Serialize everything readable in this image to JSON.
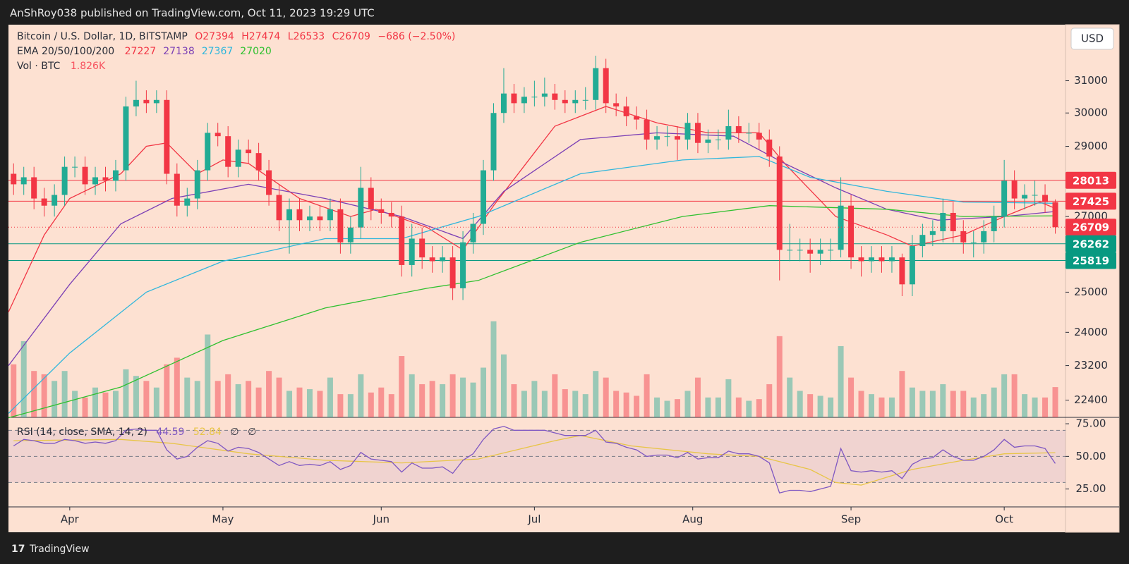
{
  "header": {
    "text": "AnShRoy038 published on TradingView.com, Oct 11, 2023 19:29 UTC"
  },
  "footer": {
    "logo": "TradingView"
  },
  "chart_data": {
    "type": "candlestick",
    "legend": {
      "symbol": "Bitcoin / U.S. Dollar, 1D, BITSTAMP",
      "open": "O27394",
      "high": "H27474",
      "low": "L26533",
      "close": "C26709",
      "change": "−686 (−2.50%)",
      "ema_label": "EMA 20/50/100/200",
      "vol_label": "Vol · BTC",
      "vol_value": "1.826K"
    },
    "currency": "USD",
    "log_scale": true,
    "up_color": "#22ab94",
    "down_color": "#f23645",
    "xlim": [
      -12,
      195
    ],
    "xticks": [
      {
        "value": 0,
        "label": "Apr"
      },
      {
        "value": 30,
        "label": "May"
      },
      {
        "value": 61,
        "label": "Jun"
      },
      {
        "value": 91,
        "label": "Jul"
      },
      {
        "value": 122,
        "label": "Aug"
      },
      {
        "value": 153,
        "label": "Sep"
      },
      {
        "value": 183,
        "label": "Oct"
      }
    ],
    "ylim": [
      22010,
      32820
    ],
    "yticks": [
      22400,
      23200,
      24000,
      25000,
      27000,
      29000,
      30000,
      31000
    ],
    "x": [
      -11,
      -9,
      -7,
      -5,
      -3,
      -1,
      1,
      3,
      5,
      7,
      9,
      11,
      13,
      15,
      17,
      19,
      21,
      23,
      25,
      27,
      29,
      31,
      33,
      35,
      37,
      39,
      41,
      43,
      45,
      47,
      49,
      51,
      53,
      55,
      57,
      59,
      61,
      63,
      65,
      67,
      69,
      71,
      73,
      75,
      77,
      79,
      81,
      83,
      85,
      87,
      89,
      91,
      93,
      95,
      97,
      99,
      101,
      103,
      105,
      107,
      109,
      111,
      113,
      115,
      117,
      119,
      121,
      123,
      125,
      127,
      129,
      131,
      133,
      135,
      137,
      139,
      141,
      143,
      145,
      147,
      149,
      151,
      153,
      155,
      157,
      159,
      161,
      163,
      165,
      167,
      169,
      171,
      173,
      175,
      177,
      179,
      181,
      183,
      185,
      187,
      189,
      191,
      193
    ],
    "open": [
      28200,
      27900,
      28100,
      27500,
      27300,
      27600,
      28400,
      28400,
      27900,
      28100,
      28000,
      28300,
      30200,
      30400,
      30300,
      30400,
      28200,
      27300,
      27500,
      28300,
      29400,
      29300,
      28400,
      28900,
      28800,
      28300,
      27600,
      26900,
      27200,
      26900,
      27000,
      26900,
      27200,
      26300,
      26700,
      27800,
      27200,
      27100,
      27000,
      25700,
      26400,
      25900,
      25800,
      25900,
      25100,
      26300,
      26800,
      28300,
      30000,
      30600,
      30300,
      30500,
      30500,
      30600,
      30400,
      30300,
      30400,
      30400,
      31400,
      30300,
      30200,
      29900,
      29800,
      29200,
      29300,
      29300,
      29200,
      29700,
      29100,
      29200,
      29200,
      29600,
      29400,
      29400,
      29200,
      28700,
      26100,
      26100,
      26100,
      26000,
      26100,
      26100,
      27300,
      25900,
      25800,
      25900,
      25800,
      25900,
      25200,
      26200,
      26500,
      26600,
      27100,
      26600,
      26300,
      26300,
      26600,
      27000,
      28000,
      27500,
      27600,
      27600,
      27394
    ],
    "high": [
      28500,
      28400,
      28400,
      27800,
      27900,
      28700,
      28700,
      28700,
      28400,
      28400,
      28600,
      30500,
      31000,
      30700,
      30700,
      30700,
      28500,
      27800,
      28600,
      29700,
      29700,
      29600,
      29200,
      29200,
      29100,
      28600,
      27900,
      27500,
      27500,
      27300,
      27300,
      27500,
      27500,
      27000,
      28400,
      28100,
      27500,
      27400,
      27300,
      26800,
      26700,
      26200,
      26200,
      26200,
      26600,
      27100,
      28600,
      30300,
      31400,
      30900,
      30800,
      31000,
      31100,
      30900,
      30700,
      30700,
      30800,
      31800,
      31700,
      30600,
      30500,
      30200,
      30100,
      29600,
      29600,
      29600,
      30000,
      30000,
      29500,
      29500,
      30100,
      29900,
      29700,
      29700,
      29500,
      29000,
      26800,
      26400,
      26400,
      26400,
      26400,
      28100,
      27600,
      26200,
      26200,
      26200,
      26200,
      26000,
      26500,
      26800,
      26900,
      27500,
      27400,
      26900,
      26600,
      26900,
      27300,
      28600,
      28300,
      27900,
      28000,
      27900,
      27474
    ],
    "low": [
      27600,
      27600,
      27200,
      27000,
      27000,
      27300,
      28100,
      27600,
      27600,
      27700,
      27700,
      28000,
      29900,
      30000,
      30000,
      27900,
      27000,
      27000,
      27200,
      28000,
      29000,
      28100,
      28100,
      28500,
      28000,
      27300,
      26600,
      26000,
      26600,
      26600,
      26600,
      26600,
      26000,
      26000,
      26400,
      26900,
      26800,
      26700,
      25400,
      25400,
      25600,
      25500,
      25500,
      24800,
      24800,
      26000,
      26500,
      28000,
      29700,
      30000,
      30000,
      30200,
      30200,
      30100,
      30000,
      30000,
      30100,
      30100,
      30000,
      29900,
      29600,
      29500,
      28900,
      28900,
      29000,
      28600,
      28900,
      28800,
      28800,
      28900,
      28900,
      29100,
      29100,
      28900,
      28400,
      25300,
      25800,
      25800,
      25500,
      25700,
      25800,
      25900,
      25600,
      25400,
      25500,
      25500,
      25500,
      24900,
      24900,
      25900,
      26200,
      26300,
      26300,
      26000,
      25900,
      26000,
      26300,
      26700,
      27200,
      27200,
      27300,
      27100,
      26533
    ],
    "close": [
      27900,
      28100,
      27500,
      27300,
      27600,
      28400,
      28400,
      27900,
      28100,
      28000,
      28300,
      30200,
      30400,
      30300,
      30400,
      28200,
      27300,
      27500,
      28300,
      29400,
      29300,
      28400,
      28900,
      28800,
      28300,
      27600,
      26900,
      27200,
      26900,
      27000,
      26900,
      27200,
      26300,
      26700,
      27800,
      27200,
      27100,
      27000,
      25700,
      26400,
      25900,
      25800,
      25900,
      25100,
      26300,
      26800,
      28300,
      30000,
      30600,
      30300,
      30500,
      30500,
      30600,
      30400,
      30300,
      30400,
      30400,
      31400,
      30300,
      30200,
      29900,
      29800,
      29200,
      29300,
      29300,
      29200,
      29700,
      29100,
      29200,
      29200,
      29600,
      29400,
      29400,
      29200,
      28700,
      26100,
      26100,
      26100,
      26000,
      26100,
      26100,
      27300,
      25900,
      25800,
      25900,
      25800,
      25900,
      25200,
      26200,
      26500,
      26600,
      27100,
      26600,
      26300,
      26300,
      26600,
      27000,
      28000,
      27500,
      27600,
      27600,
      27400,
      26709
    ],
    "levels": [
      {
        "value": 28013,
        "color": "#f23645"
      },
      {
        "value": 27425,
        "color": "#f23645"
      },
      {
        "value": 26262,
        "color": "#089981"
      },
      {
        "value": 25819,
        "color": "#089981"
      }
    ],
    "ema": [
      {
        "name": "20",
        "color": "#f23645",
        "x": [
          -12,
          -5,
          0,
          10,
          15,
          19,
          25,
          30,
          35,
          45,
          55,
          60,
          70,
          77,
          83,
          95,
          105,
          115,
          125,
          135,
          140,
          150,
          160,
          165,
          175,
          183,
          190,
          193
        ],
        "values": [
          24500,
          26500,
          27500,
          28200,
          29000,
          29100,
          28200,
          28600,
          28500,
          27500,
          27000,
          27200,
          26700,
          26100,
          27300,
          29600,
          30200,
          29700,
          29400,
          29400,
          28500,
          27000,
          26500,
          26200,
          26500,
          27000,
          27400,
          27227
        ]
      },
      {
        "name": "50",
        "color": "#7b3fb5",
        "x": [
          -12,
          0,
          10,
          20,
          35,
          50,
          65,
          77,
          85,
          100,
          115,
          130,
          140,
          150,
          160,
          170,
          183,
          193
        ],
        "values": [
          23200,
          25200,
          26800,
          27500,
          27900,
          27500,
          27000,
          26400,
          27700,
          29200,
          29400,
          29300,
          28500,
          27800,
          27200,
          26900,
          27000,
          27138
        ]
      },
      {
        "name": "100",
        "color": "#2fb6dc",
        "x": [
          -12,
          0,
          15,
          30,
          50,
          65,
          80,
          100,
          120,
          135,
          145,
          160,
          175,
          193
        ],
        "values": [
          22100,
          23500,
          25000,
          25800,
          26400,
          26400,
          27000,
          28200,
          28600,
          28700,
          28100,
          27700,
          27400,
          27367
        ]
      },
      {
        "name": "200",
        "color": "#2fc02f",
        "x": [
          -12,
          10,
          30,
          50,
          70,
          80,
          100,
          120,
          137,
          160,
          175,
          193
        ],
        "values": [
          22000,
          22700,
          23800,
          24600,
          25100,
          25300,
          26300,
          27000,
          27300,
          27200,
          27000,
          27020
        ]
      }
    ],
    "volume": {
      "ylim": [
        0,
        23.7
      ],
      "values": [
        3.2,
        4.6,
        2.8,
        2.6,
        2.2,
        2.8,
        1.6,
        1.2,
        1.8,
        1.5,
        1.6,
        2.9,
        2.5,
        2.2,
        1.8,
        3.2,
        3.6,
        2.4,
        2.2,
        5.0,
        2.2,
        2.6,
        2.0,
        2.2,
        1.8,
        2.8,
        2.4,
        1.6,
        1.8,
        1.7,
        1.6,
        2.4,
        1.4,
        1.4,
        2.6,
        1.5,
        1.8,
        1.4,
        3.7,
        2.6,
        2.0,
        2.2,
        2.0,
        2.6,
        2.4,
        2.1,
        3.0,
        5.8,
        3.8,
        2.0,
        1.6,
        2.2,
        1.6,
        2.6,
        1.7,
        1.6,
        1.4,
        2.8,
        2.4,
        1.6,
        1.5,
        1.3,
        2.6,
        1.2,
        1.0,
        1.1,
        1.6,
        2.4,
        1.2,
        1.2,
        2.3,
        1.2,
        1.0,
        1.1,
        2.0,
        4.9,
        2.4,
        1.6,
        1.4,
        1.3,
        1.2,
        4.3,
        2.4,
        1.6,
        1.4,
        1.2,
        1.2,
        2.8,
        1.8,
        1.6,
        1.6,
        2.0,
        1.6,
        1.6,
        1.2,
        1.4,
        1.8,
        2.6,
        2.6,
        1.4,
        1.2,
        1.2,
        1.826
      ]
    },
    "rsi": {
      "label": "RSI (14, close, SMA, 14, 2)",
      "color": "#7e57c2",
      "sma_color": "#e8c547",
      "values": [
        58,
        63,
        62,
        60,
        60,
        63,
        62,
        60,
        61,
        60,
        62,
        70,
        71,
        70,
        70,
        55,
        48,
        50,
        57,
        62,
        60,
        54,
        57,
        56,
        53,
        48,
        43,
        46,
        43,
        44,
        43,
        46,
        40,
        43,
        53,
        48,
        47,
        46,
        38,
        45,
        41,
        41,
        42,
        37,
        47,
        52,
        63,
        71,
        73,
        70,
        70,
        70,
        70,
        68,
        66,
        66,
        66,
        70,
        61,
        60,
        57,
        55,
        50,
        51,
        51,
        49,
        53,
        48,
        49,
        49,
        54,
        52,
        52,
        50,
        45,
        22,
        24,
        24,
        23,
        25,
        27,
        56,
        39,
        38,
        39,
        38,
        39,
        33,
        44,
        48,
        49,
        55,
        50,
        47,
        47,
        50,
        55,
        63,
        57,
        58,
        58,
        56,
        44.59
      ],
      "sma": {
        "x": [
          -11,
          10,
          20,
          35,
          50,
          65,
          80,
          95,
          100,
          110,
          125,
          135,
          145,
          150,
          155,
          165,
          175,
          183,
          193
        ],
        "values": [
          62,
          63,
          60,
          52,
          47,
          45,
          48,
          62,
          66,
          58,
          52,
          50,
          40,
          30,
          28,
          40,
          47,
          52,
          52.84
        ]
      },
      "extras": [
        "∅",
        "∅"
      ],
      "ylim": [
        11.3,
        79.9
      ],
      "yticks": [
        {
          "value": 75,
          "label": "75.00"
        },
        {
          "value": 50,
          "label": "50.00"
        },
        {
          "value": 25,
          "label": "25.00"
        }
      ],
      "bands": [
        70,
        50,
        30
      ]
    }
  }
}
